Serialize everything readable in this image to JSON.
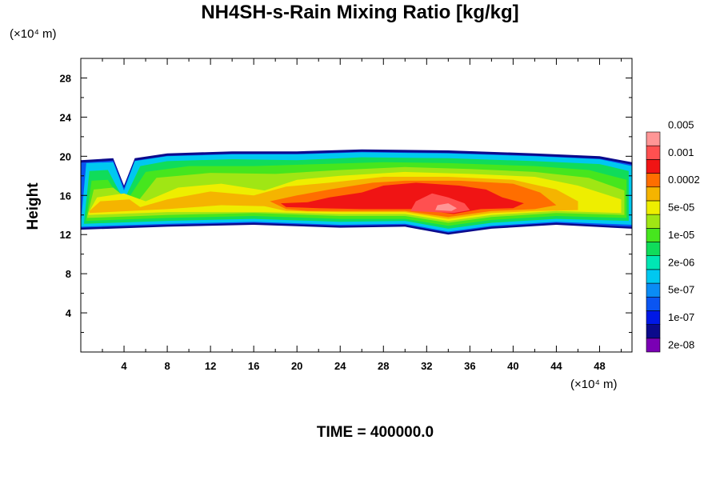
{
  "chart_data": {
    "type": "heatmap",
    "title": "NH4SH-s-Rain Mixing Ratio [kg/kg]",
    "ylabel": "Height",
    "x_unit_label": "(×10⁴ m)",
    "y_unit_label": "(×10⁴ m)",
    "footer": "TIME = 400000.0",
    "xlim": [
      0,
      51
    ],
    "ylim": [
      0,
      30
    ],
    "x_ticks": [
      4,
      8,
      12,
      16,
      20,
      24,
      28,
      32,
      36,
      40,
      44,
      48
    ],
    "y_ticks": [
      4,
      8,
      12,
      16,
      20,
      24,
      28
    ],
    "colorbar": {
      "colors": [
        "#7a00b4",
        "#0b0a8c",
        "#0018e6",
        "#0a55f2",
        "#0a8cf5",
        "#00c8f0",
        "#00e6b4",
        "#10dc5a",
        "#46e61e",
        "#a0e614",
        "#eeee00",
        "#f5b400",
        "#ff6e00",
        "#f01414",
        "#ff5050",
        "#ff9696"
      ],
      "labels": [
        "2e-08",
        "1e-07",
        "5e-07",
        "2e-06",
        "1e-05",
        "5e-05",
        "0.0002",
        "0.001",
        "0.005"
      ]
    },
    "field": {
      "x_range": [
        0,
        51
      ],
      "layer_bottom": [
        [
          0,
          12.5
        ],
        [
          8,
          12.8
        ],
        [
          16,
          13.0
        ],
        [
          24,
          12.7
        ],
        [
          30,
          12.8
        ],
        [
          34,
          12.0
        ],
        [
          38,
          12.6
        ],
        [
          44,
          13.0
        ],
        [
          51,
          12.6
        ]
      ],
      "layer_top": [
        [
          0,
          19.6
        ],
        [
          3,
          19.8
        ],
        [
          4,
          17.0
        ],
        [
          5,
          19.8
        ],
        [
          8,
          20.3
        ],
        [
          14,
          20.5
        ],
        [
          20,
          20.5
        ],
        [
          26,
          20.7
        ],
        [
          34,
          20.6
        ],
        [
          42,
          20.3
        ],
        [
          48,
          20.0
        ],
        [
          51,
          19.4
        ]
      ],
      "contours": [
        {
          "level_index": 5,
          "outline": [
            [
              0,
              13
            ],
            [
              0.5,
              19.3
            ],
            [
              3,
              19.4
            ],
            [
              4,
              16.5
            ],
            [
              5,
              19.5
            ],
            [
              8,
              20.0
            ],
            [
              14,
              20.2
            ],
            [
              20,
              20.2
            ],
            [
              26,
              20.4
            ],
            [
              34,
              20.3
            ],
            [
              42,
              20.0
            ],
            [
              48,
              19.7
            ],
            [
              51,
              19.0
            ],
            [
              51,
              13.0
            ],
            [
              44,
              13.3
            ],
            [
              38,
              12.9
            ],
            [
              34,
              12.3
            ],
            [
              30,
              13.1
            ],
            [
              24,
              13.0
            ],
            [
              16,
              13.3
            ],
            [
              8,
              13.1
            ],
            [
              0,
              12.8
            ]
          ]
        },
        {
          "level_index": 7,
          "outline": [
            [
              0.3,
              13.3
            ],
            [
              0.8,
              18.5
            ],
            [
              2.5,
              18.6
            ],
            [
              4,
              15.5
            ],
            [
              5.5,
              19.0
            ],
            [
              8,
              19.5
            ],
            [
              14,
              19.7
            ],
            [
              20,
              19.6
            ],
            [
              26,
              19.9
            ],
            [
              34,
              19.8
            ],
            [
              42,
              19.5
            ],
            [
              48,
              19.2
            ],
            [
              50.7,
              18.5
            ],
            [
              50.7,
              13.4
            ],
            [
              44,
              13.6
            ],
            [
              38,
              13.2
            ],
            [
              34,
              12.6
            ],
            [
              30,
              13.4
            ],
            [
              24,
              13.3
            ],
            [
              16,
              13.6
            ],
            [
              8,
              13.4
            ],
            [
              0.3,
              13.1
            ]
          ]
        },
        {
          "level_index": 8,
          "outline": [
            [
              0.5,
              13.6
            ],
            [
              1,
              17.5
            ],
            [
              2.5,
              17.6
            ],
            [
              4,
              15.0
            ],
            [
              6,
              18.4
            ],
            [
              10,
              19.0
            ],
            [
              16,
              19.0
            ],
            [
              22,
              19.2
            ],
            [
              28,
              19.4
            ],
            [
              34,
              19.3
            ],
            [
              42,
              19.0
            ],
            [
              47,
              18.6
            ],
            [
              50.5,
              17.6
            ],
            [
              50.5,
              13.7
            ],
            [
              44,
              13.9
            ],
            [
              38,
              13.5
            ],
            [
              34,
              12.9
            ],
            [
              30,
              13.6
            ],
            [
              24,
              13.6
            ],
            [
              16,
              13.9
            ],
            [
              8,
              13.7
            ],
            [
              0.5,
              13.4
            ]
          ]
        },
        {
          "level_index": 9,
          "outline": [
            [
              0.6,
              13.9
            ],
            [
              1.2,
              16.6
            ],
            [
              3,
              16.8
            ],
            [
              5,
              15.0
            ],
            [
              7,
              17.8
            ],
            [
              12,
              18.3
            ],
            [
              18,
              18.2
            ],
            [
              24,
              18.6
            ],
            [
              30,
              18.9
            ],
            [
              36,
              18.7
            ],
            [
              42,
              18.4
            ],
            [
              47,
              17.8
            ],
            [
              50.3,
              16.5
            ],
            [
              50.3,
              14.0
            ],
            [
              44,
              14.2
            ],
            [
              38,
              13.8
            ],
            [
              34,
              13.2
            ],
            [
              30,
              13.9
            ],
            [
              24,
              13.9
            ],
            [
              16,
              14.2
            ],
            [
              8,
              14.0
            ],
            [
              0.6,
              13.7
            ]
          ]
        },
        {
          "level_index": 10,
          "outline": [
            [
              0.7,
              14.2
            ],
            [
              1.5,
              15.8
            ],
            [
              4,
              16.2
            ],
            [
              6,
              15.4
            ],
            [
              9,
              16.8
            ],
            [
              13,
              17.2
            ],
            [
              17,
              16.5
            ],
            [
              20,
              17.6
            ],
            [
              24,
              18.0
            ],
            [
              30,
              18.4
            ],
            [
              36,
              18.2
            ],
            [
              42,
              17.9
            ],
            [
              46,
              17.0
            ],
            [
              50.0,
              15.6
            ],
            [
              50.0,
              14.2
            ],
            [
              44,
              14.4
            ],
            [
              38,
              14.0
            ],
            [
              34,
              13.4
            ],
            [
              30,
              14.1
            ],
            [
              24,
              14.1
            ],
            [
              17,
              14.3
            ],
            [
              8,
              14.3
            ],
            [
              0.7,
              14.0
            ]
          ]
        },
        {
          "level_index": 11,
          "outline": [
            [
              0.8,
              14.4
            ],
            [
              1.8,
              15.4
            ],
            [
              4.5,
              15.6
            ],
            [
              5.5,
              14.8
            ],
            [
              8,
              15.6
            ],
            [
              12,
              16.4
            ],
            [
              16,
              16.0
            ],
            [
              19,
              16.9
            ],
            [
              23,
              17.3
            ],
            [
              28,
              17.9
            ],
            [
              34,
              17.9
            ],
            [
              40,
              17.6
            ],
            [
              44,
              16.6
            ],
            [
              46,
              15.4
            ],
            [
              46,
              14.5
            ],
            [
              42,
              14.4
            ],
            [
              38,
              14.2
            ],
            [
              34,
              13.6
            ],
            [
              30,
              14.3
            ],
            [
              24,
              14.3
            ],
            [
              19,
              14.4
            ],
            [
              17,
              14.9
            ],
            [
              13,
              15.0
            ],
            [
              8,
              14.6
            ],
            [
              0.8,
              14.2
            ]
          ]
        },
        {
          "level_index": 12,
          "outline": [
            [
              19,
              14.6
            ],
            [
              17.5,
              15.4
            ],
            [
              20,
              16.0
            ],
            [
              23,
              16.6
            ],
            [
              27,
              17.3
            ],
            [
              30,
              17.5
            ],
            [
              35,
              17.5
            ],
            [
              40,
              17.2
            ],
            [
              42.5,
              16.3
            ],
            [
              44,
              15.0
            ],
            [
              42,
              14.6
            ],
            [
              38,
              14.4
            ],
            [
              34,
              13.8
            ],
            [
              30,
              14.4
            ],
            [
              24,
              14.4
            ],
            [
              21,
              14.4
            ]
          ]
        },
        {
          "level_index": 13,
          "outline": [
            [
              19,
              14.8
            ],
            [
              18.5,
              15.2
            ],
            [
              21,
              15.3
            ],
            [
              23,
              15.8
            ],
            [
              26,
              16.3
            ],
            [
              28,
              17.0
            ],
            [
              31,
              17.3
            ],
            [
              35,
              17.0
            ],
            [
              37.5,
              16.6
            ],
            [
              39,
              15.8
            ],
            [
              41,
              15.2
            ],
            [
              40,
              14.7
            ],
            [
              37,
              14.6
            ],
            [
              34.5,
              14.1
            ],
            [
              31,
              14.6
            ],
            [
              26,
              14.6
            ],
            [
              22,
              14.7
            ]
          ]
        },
        {
          "level_index": 14,
          "outline": [
            [
              30.5,
              14.4
            ],
            [
              31,
              15.4
            ],
            [
              32.5,
              16.2
            ],
            [
              34,
              15.8
            ],
            [
              35.5,
              15.2
            ],
            [
              36,
              14.5
            ],
            [
              34.5,
              14.2
            ]
          ]
        },
        {
          "level_index": 15,
          "outline": [
            [
              32.8,
              14.5
            ],
            [
              33,
              15.0
            ],
            [
              34,
              15.2
            ],
            [
              34.8,
              14.7
            ],
            [
              34.3,
              14.4
            ]
          ]
        }
      ]
    }
  }
}
